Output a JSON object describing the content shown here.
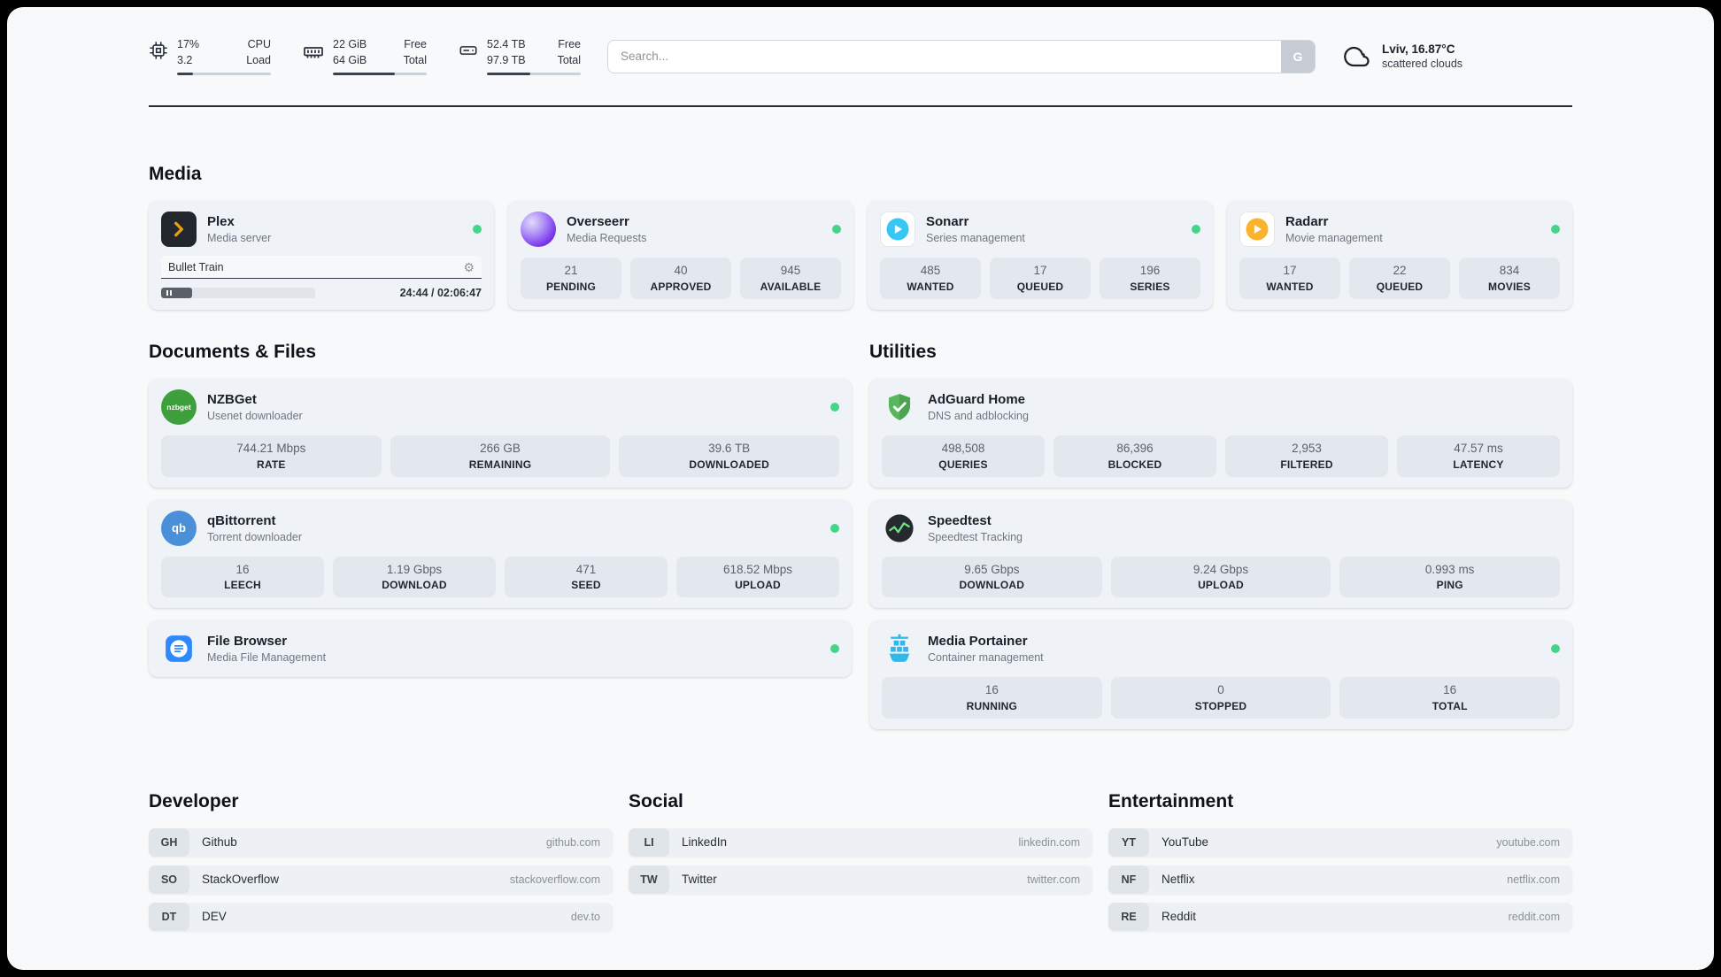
{
  "header": {
    "metrics": [
      {
        "icon": "cpu-icon",
        "value_top": "17%",
        "value_bottom": "3.2",
        "label_top": "CPU",
        "label_bottom": "Load",
        "progress": 17
      },
      {
        "icon": "ram-icon",
        "value_top": "22 GiB",
        "value_bottom": "64 GiB",
        "label_top": "Free",
        "label_bottom": "Total",
        "progress": 66
      },
      {
        "icon": "disk-icon",
        "value_top": "52.4 TB",
        "value_bottom": "97.9 TB",
        "label_top": "Free",
        "label_bottom": "Total",
        "progress": 46
      }
    ],
    "search": {
      "placeholder": "Search...",
      "engine_button": "G"
    },
    "weather": {
      "location": "Lviv, 16.87°C",
      "condition": "scattered clouds"
    }
  },
  "sections": {
    "media": {
      "title": "Media",
      "cards": [
        {
          "title": "Plex",
          "subtitle": "Media server",
          "status": "online",
          "player": {
            "track": "Bullet Train",
            "time": "24:44 / 02:06:47",
            "progress": 20
          }
        },
        {
          "title": "Overseerr",
          "subtitle": "Media Requests",
          "status": "online",
          "stats": [
            {
              "value": "21",
              "label": "PENDING"
            },
            {
              "value": "40",
              "label": "APPROVED"
            },
            {
              "value": "945",
              "label": "AVAILABLE"
            }
          ]
        },
        {
          "title": "Sonarr",
          "subtitle": "Series management",
          "status": "online",
          "stats": [
            {
              "value": "485",
              "label": "WANTED"
            },
            {
              "value": "17",
              "label": "QUEUED"
            },
            {
              "value": "196",
              "label": "SERIES"
            }
          ]
        },
        {
          "title": "Radarr",
          "subtitle": "Movie management",
          "status": "online",
          "stats": [
            {
              "value": "17",
              "label": "WANTED"
            },
            {
              "value": "22",
              "label": "QUEUED"
            },
            {
              "value": "834",
              "label": "MOVIES"
            }
          ]
        }
      ]
    },
    "documents": {
      "title": "Documents & Files",
      "cards": [
        {
          "title": "NZBGet",
          "subtitle": "Usenet downloader",
          "status": "online",
          "icon_text": "nzbget",
          "stats": [
            {
              "value": "744.21 Mbps",
              "label": "RATE"
            },
            {
              "value": "266 GB",
              "label": "REMAINING"
            },
            {
              "value": "39.6 TB",
              "label": "DOWNLOADED"
            }
          ]
        },
        {
          "title": "qBittorrent",
          "subtitle": "Torrent downloader",
          "status": "online",
          "icon_text": "qb",
          "stats": [
            {
              "value": "16",
              "label": "LEECH"
            },
            {
              "value": "1.19 Gbps",
              "label": "DOWNLOAD"
            },
            {
              "value": "471",
              "label": "SEED"
            },
            {
              "value": "618.52 Mbps",
              "label": "UPLOAD"
            }
          ]
        },
        {
          "title": "File Browser",
          "subtitle": "Media File Management",
          "status": "online"
        }
      ]
    },
    "utilities": {
      "title": "Utilities",
      "cards": [
        {
          "title": "AdGuard Home",
          "subtitle": "DNS and adblocking",
          "stats": [
            {
              "value": "498,508",
              "label": "QUERIES"
            },
            {
              "value": "86,396",
              "label": "BLOCKED"
            },
            {
              "value": "2,953",
              "label": "FILTERED"
            },
            {
              "value": "47.57 ms",
              "label": "LATENCY"
            }
          ]
        },
        {
          "title": "Speedtest",
          "subtitle": "Speedtest Tracking",
          "stats": [
            {
              "value": "9.65 Gbps",
              "label": "DOWNLOAD"
            },
            {
              "value": "9.24 Gbps",
              "label": "UPLOAD"
            },
            {
              "value": "0.993 ms",
              "label": "PING"
            }
          ]
        },
        {
          "title": "Media Portainer",
          "subtitle": "Container management",
          "status": "online",
          "stats": [
            {
              "value": "16",
              "label": "RUNNING"
            },
            {
              "value": "0",
              "label": "STOPPED"
            },
            {
              "value": "16",
              "label": "TOTAL"
            }
          ]
        }
      ]
    }
  },
  "bookmarks": {
    "groups": [
      {
        "title": "Developer",
        "items": [
          {
            "abbr": "GH",
            "name": "Github",
            "url": "github.com"
          },
          {
            "abbr": "SO",
            "name": "StackOverflow",
            "url": "stackoverflow.com"
          },
          {
            "abbr": "DT",
            "name": "DEV",
            "url": "dev.to"
          }
        ]
      },
      {
        "title": "Social",
        "items": [
          {
            "abbr": "LI",
            "name": "LinkedIn",
            "url": "linkedin.com"
          },
          {
            "abbr": "TW",
            "name": "Twitter",
            "url": "twitter.com"
          }
        ]
      },
      {
        "title": "Entertainment",
        "items": [
          {
            "abbr": "YT",
            "name": "YouTube",
            "url": "youtube.com"
          },
          {
            "abbr": "NF",
            "name": "Netflix",
            "url": "netflix.com"
          },
          {
            "abbr": "RE",
            "name": "Reddit",
            "url": "reddit.com"
          }
        ]
      }
    ]
  },
  "colors": {
    "status_online": "#46d38a",
    "plex_accent": "#e5a00d",
    "page_bg": "#f7f9fb"
  }
}
